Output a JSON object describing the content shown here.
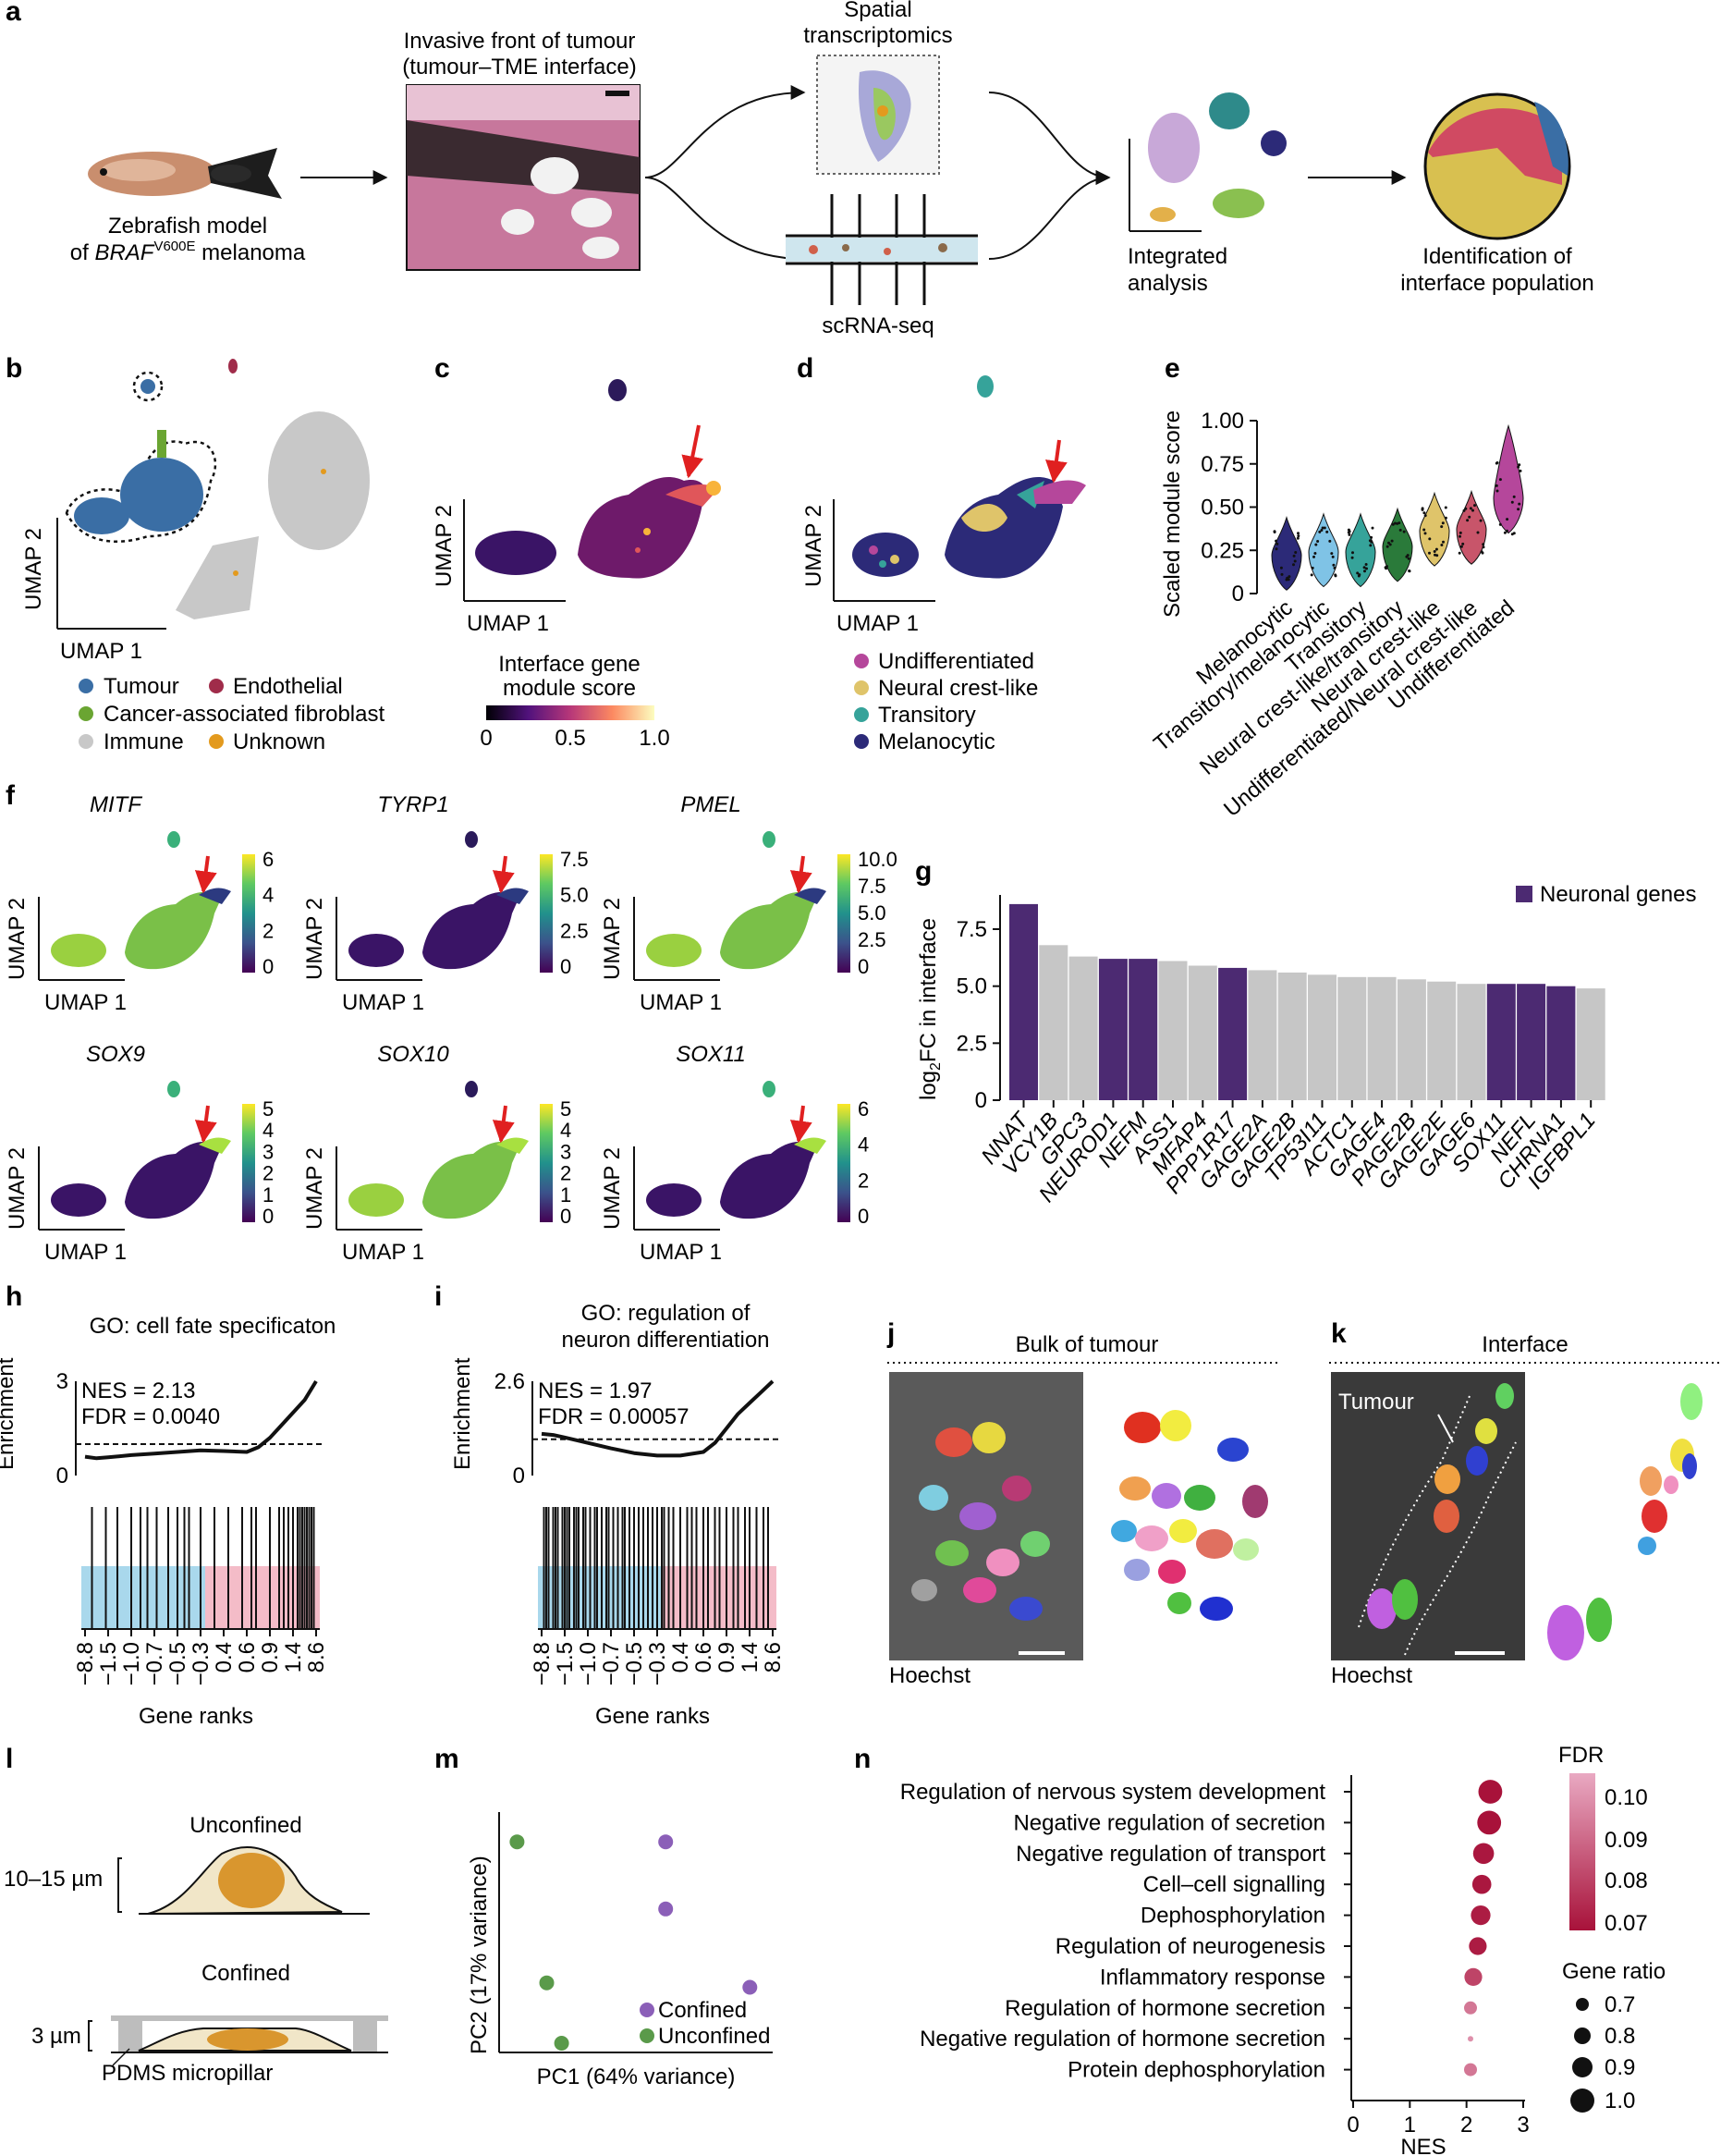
{
  "colors": {
    "tumour": "#3a6ea5",
    "endothelial": "#a02c4a",
    "caf": "#6aa532",
    "immune": "#c8c8c8",
    "unknown": "#e39a1e",
    "undifferentiated": "#b5479b",
    "neural_crest_like": "#dfc46a",
    "transitory": "#36a39a",
    "melanocytic": "#2c2a78",
    "neuronal_bar": "#4c2a72",
    "other_bar": "#c6c6c6",
    "arrow": "#e02020"
  },
  "panel_a": {
    "label": "a",
    "zebrafish_line1": "Zebrafish model",
    "zebrafish_line2_pre": "of ",
    "zebrafish_gene": "BRAF",
    "zebrafish_sup": "V600E",
    "zebrafish_line2_post": " melanoma",
    "front_line1": "Invasive front of tumour",
    "front_line2": "(tumour–TME interface)",
    "spatial_line1": "Spatial",
    "spatial_line2": "transcriptomics",
    "scrna": "scRNA-seq",
    "integrated_line1": "Integrated",
    "integrated_line2": "analysis",
    "ident_line1": "Identification of",
    "ident_line2": "interface population"
  },
  "panel_b": {
    "label": "b",
    "xlabel": "UMAP 1",
    "ylabel": "UMAP 2",
    "legend": [
      "Tumour",
      "Endothelial",
      "Cancer-associated fibroblast",
      "Immune",
      "Unknown"
    ]
  },
  "panel_c": {
    "label": "c",
    "xlabel": "UMAP 1",
    "ylabel": "UMAP 2",
    "cbar_title_line1": "Interface gene",
    "cbar_title_line2": "module score",
    "cbar_ticks": [
      "0",
      "0.5",
      "1.0"
    ]
  },
  "panel_d": {
    "label": "d",
    "xlabel": "UMAP 1",
    "ylabel": "UMAP 2",
    "legend": [
      "Undifferentiated",
      "Neural crest-like",
      "Transitory",
      "Melanocytic"
    ]
  },
  "panel_e": {
    "label": "e",
    "ylabel": "Scaled module score",
    "yticks": [
      "0",
      "0.25",
      "0.50",
      "0.75",
      "1.00"
    ],
    "categories": [
      "Melanocytic",
      "Transitory/melanocytic",
      "Transitory",
      "Neural crest-like/transitory",
      "Neural crest-like",
      "Undifferentiated/Neural crest-like",
      "Undifferentiated"
    ],
    "medians": [
      0.22,
      0.24,
      0.24,
      0.27,
      0.36,
      0.37,
      0.55
    ],
    "colors": [
      "#2c2a78",
      "#7fc3e6",
      "#36a39a",
      "#2a7a3a",
      "#dfc46a",
      "#c8556a",
      "#b5479b"
    ]
  },
  "panel_f": {
    "label": "f",
    "xlabel": "UMAP 1",
    "ylabel": "UMAP 2",
    "genes": [
      {
        "name": "MITF",
        "ticks": [
          "6",
          "4",
          "2",
          "0"
        ]
      },
      {
        "name": "TYRP1",
        "ticks": [
          "7.5",
          "5.0",
          "2.5",
          "0"
        ]
      },
      {
        "name": "PMEL",
        "ticks": [
          "10.0",
          "7.5",
          "5.0",
          "2.5",
          "0"
        ]
      },
      {
        "name": "SOX9",
        "ticks": [
          "5",
          "4",
          "3",
          "2",
          "1",
          "0"
        ]
      },
      {
        "name": "SOX10",
        "ticks": [
          "5",
          "4",
          "3",
          "2",
          "1",
          "0"
        ]
      },
      {
        "name": "SOX11",
        "ticks": [
          "6",
          "4",
          "2",
          "0"
        ]
      }
    ]
  },
  "chart_data": [
    {
      "panel": "g",
      "type": "bar",
      "ylabel_pre": "log",
      "ylabel_sub": "2",
      "ylabel_post": "FC in interface",
      "ylim": [
        0,
        9
      ],
      "yticks": [
        "0",
        "2.5",
        "5.0",
        "7.5"
      ],
      "legend": "Neuronal genes",
      "categories": [
        "NNAT",
        "VCY1B",
        "GPC3",
        "NEUROD1",
        "NEFM",
        "ASS1",
        "MFAP4",
        "PPP1R17",
        "GAGE2A",
        "GAGE2B",
        "TP53I11",
        "ACTC1",
        "GAGE4",
        "PAGE2B",
        "GAGE2E",
        "GAGE6",
        "SOX11",
        "NEFL",
        "CHRNA1",
        "IGFBPL1"
      ],
      "values": [
        8.6,
        6.8,
        6.3,
        6.2,
        6.2,
        6.1,
        5.9,
        5.8,
        5.7,
        5.6,
        5.5,
        5.4,
        5.4,
        5.3,
        5.2,
        5.1,
        5.1,
        5.1,
        5.0,
        4.9
      ],
      "neuronal": [
        true,
        false,
        false,
        true,
        true,
        false,
        false,
        true,
        false,
        false,
        false,
        false,
        false,
        false,
        false,
        false,
        true,
        true,
        true,
        false
      ]
    },
    {
      "panel": "h",
      "type": "line",
      "title": "GO: cell fate specificaton",
      "ylabel": "Enrichment",
      "xlabel": "Gene ranks",
      "yticks": [
        "3",
        "0"
      ],
      "nes": "NES = 2.13",
      "fdr": "FDR = 0.0040",
      "xticks": [
        "−8.8",
        "−1.5",
        "−1.0",
        "−0.7",
        "−0.5",
        "−0.3",
        "0.4",
        "0.6",
        "0.9",
        "1.4",
        "8.6"
      ],
      "threshold": 1.0,
      "ymax": 3,
      "curve_x": [
        0,
        0.05,
        0.1,
        0.2,
        0.3,
        0.4,
        0.5,
        0.6,
        0.7,
        0.75,
        0.8,
        0.85,
        0.9,
        0.95,
        1.0
      ],
      "curve_y": [
        0.6,
        0.55,
        0.58,
        0.65,
        0.7,
        0.75,
        0.8,
        0.78,
        0.75,
        0.9,
        1.2,
        1.6,
        2.0,
        2.4,
        3.0
      ],
      "hits": [
        0.03,
        0.09,
        0.14,
        0.2,
        0.24,
        0.27,
        0.31,
        0.36,
        0.4,
        0.43,
        0.45,
        0.5,
        0.56,
        0.62,
        0.68,
        0.72,
        0.74,
        0.8,
        0.84,
        0.86,
        0.88,
        0.9,
        0.92,
        0.93,
        0.94,
        0.95,
        0.96,
        0.97,
        0.98,
        0.99
      ]
    },
    {
      "panel": "i",
      "type": "line",
      "title_line1": "GO: regulation of",
      "title_line2": "neuron differentiation",
      "ylabel": "Enrichment",
      "xlabel": "Gene ranks",
      "yticks": [
        "2.6",
        "0"
      ],
      "nes": "NES = 1.97",
      "fdr": "FDR = 0.00057",
      "xticks": [
        "−8.8",
        "−1.5",
        "−1.0",
        "−0.7",
        "−0.5",
        "−0.3",
        "0.4",
        "0.6",
        "0.9",
        "1.4",
        "8.6"
      ],
      "threshold": 1.0,
      "ymax": 2.6,
      "curve_x": [
        0,
        0.05,
        0.1,
        0.2,
        0.3,
        0.4,
        0.5,
        0.6,
        0.7,
        0.75,
        0.8,
        0.85,
        0.9,
        0.95,
        1.0
      ],
      "curve_y": [
        1.15,
        1.12,
        1.05,
        0.9,
        0.75,
        0.62,
        0.55,
        0.55,
        0.65,
        0.9,
        1.3,
        1.7,
        2.0,
        2.3,
        2.6
      ],
      "hits": [
        0.01,
        0.02,
        0.03,
        0.05,
        0.06,
        0.07,
        0.09,
        0.1,
        0.11,
        0.12,
        0.14,
        0.15,
        0.16,
        0.18,
        0.19,
        0.21,
        0.23,
        0.24,
        0.26,
        0.28,
        0.29,
        0.31,
        0.33,
        0.35,
        0.36,
        0.38,
        0.4,
        0.42,
        0.44,
        0.46,
        0.48,
        0.5,
        0.52,
        0.53,
        0.55,
        0.57,
        0.6,
        0.63,
        0.65,
        0.67,
        0.7,
        0.72,
        0.75,
        0.77,
        0.8,
        0.83,
        0.85,
        0.88,
        0.9,
        0.93,
        0.96,
        0.98
      ]
    },
    {
      "panel": "m",
      "type": "scatter",
      "xlabel": "PC1 (64% variance)",
      "ylabel": "PC2 (17% variance)",
      "legend": [
        "Confined",
        "Unconfined"
      ],
      "series": [
        {
          "name": "Confined",
          "color": "#8b5fb8",
          "points": [
            [
              0.62,
              0.9
            ],
            [
              0.62,
              0.6
            ],
            [
              0.96,
              0.25
            ]
          ]
        },
        {
          "name": "Unconfined",
          "color": "#5a9a4a",
          "points": [
            [
              0.02,
              0.9
            ],
            [
              0.14,
              0.27
            ],
            [
              0.2,
              0.0
            ]
          ]
        }
      ]
    },
    {
      "panel": "n",
      "type": "scatter",
      "xlabel": "NES",
      "xticks": [
        "0",
        "1",
        "2",
        "3"
      ],
      "xlim": [
        0,
        3
      ],
      "fdr_title": "FDR",
      "fdr_ticks": [
        "0.10",
        "0.09",
        "0.08",
        "0.07"
      ],
      "size_title": "Gene ratio",
      "size_ticks": [
        "0.7",
        "0.8",
        "0.9",
        "1.0"
      ],
      "terms": [
        "Regulation of nervous system development",
        "Negative regulation of secretion",
        "Negative regulation of transport",
        "Cell–cell signalling",
        "Dephosphorylation",
        "Regulation of neurogenesis",
        "Inflammatory response",
        "Regulation of hormone secretion",
        "Negative regulation of hormone secretion",
        "Protein dephosphorylation"
      ],
      "nes": [
        2.42,
        2.4,
        2.3,
        2.27,
        2.25,
        2.2,
        2.12,
        2.07,
        2.07,
        2.07
      ],
      "fdr": [
        0.07,
        0.07,
        0.071,
        0.071,
        0.072,
        0.072,
        0.08,
        0.09,
        0.095,
        0.09
      ],
      "gene_ratio": [
        1.0,
        1.0,
        0.95,
        0.92,
        0.93,
        0.9,
        0.9,
        0.82,
        0.7,
        0.82
      ]
    }
  ],
  "panel_j": {
    "label": "j",
    "title": "Bulk of tumour",
    "stain": "Hoechst"
  },
  "panel_k": {
    "label": "k",
    "title": "Interface",
    "stain": "Hoechst",
    "annot": "Tumour"
  },
  "panel_l": {
    "label": "l",
    "unconfined": "Unconfined",
    "confined": "Confined",
    "height1": "10–15 µm",
    "height2": "3 µm",
    "pillar": "PDMS micropillar"
  },
  "panel_m": {
    "label": "m"
  },
  "panel_n": {
    "label": "n"
  },
  "panel_h": {
    "label": "h"
  },
  "panel_i": {
    "label": "i"
  },
  "panel_g": {
    "label": "g"
  }
}
